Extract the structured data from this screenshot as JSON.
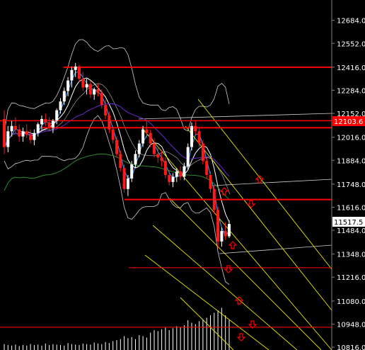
{
  "chart_data": {
    "type": "candlestick",
    "y_ticks": [
      12684.0,
      12552.0,
      12416.0,
      12284.0,
      12152.0,
      12016.0,
      11884.0,
      11748.0,
      11616.0,
      11484.0,
      11348.0,
      11216.0,
      11080.0,
      10948.0,
      10816.0
    ],
    "ylim": [
      10800,
      12800
    ],
    "current_price_label": "11517.5",
    "highlight_price_label": "12103.6",
    "colors": {
      "background": "#000000",
      "bull": "#ffffff",
      "bear": "#ff1a1a",
      "level": "#ff0000",
      "channel": "#e8e800",
      "ma_fast": "#3fa0ff",
      "ma_mid": "#ffffff",
      "ma_long": "#6a2ad0",
      "ma_green": "#2e8b2e",
      "band": "#cfcfcf",
      "volume": "#ffffff",
      "arrow": "#ff0000",
      "axis_text": "#ffffff"
    },
    "candles": [
      [
        12120,
        12170,
        11920,
        11960
      ],
      [
        11960,
        12080,
        11930,
        12050
      ],
      [
        12050,
        12110,
        12020,
        12080
      ],
      [
        12080,
        12130,
        12040,
        12060
      ],
      [
        12060,
        12090,
        11990,
        12020
      ],
      [
        12020,
        12070,
        11990,
        12050
      ],
      [
        12050,
        12090,
        12010,
        12030
      ],
      [
        12030,
        12060,
        11980,
        12000
      ],
      [
        12000,
        12060,
        11970,
        12040
      ],
      [
        12040,
        12100,
        12020,
        12090
      ],
      [
        12090,
        12140,
        12060,
        12120
      ],
      [
        12120,
        12150,
        12080,
        12100
      ],
      [
        12100,
        12130,
        12050,
        12070
      ],
      [
        12070,
        12120,
        12040,
        12110
      ],
      [
        12110,
        12180,
        12090,
        12170
      ],
      [
        12170,
        12240,
        12150,
        12220
      ],
      [
        12220,
        12300,
        12200,
        12280
      ],
      [
        12280,
        12360,
        12250,
        12340
      ],
      [
        12340,
        12420,
        12300,
        12400
      ],
      [
        12400,
        12440,
        12360,
        12420
      ],
      [
        12420,
        12430,
        12330,
        12350
      ],
      [
        12350,
        12390,
        12280,
        12300
      ],
      [
        12300,
        12350,
        12260,
        12320
      ],
      [
        12320,
        12340,
        12240,
        12260
      ],
      [
        12260,
        12300,
        12230,
        12290
      ],
      [
        12290,
        12320,
        12250,
        12270
      ],
      [
        12270,
        12290,
        12180,
        12200
      ],
      [
        12200,
        12230,
        12120,
        12140
      ],
      [
        12140,
        12160,
        12040,
        12060
      ],
      [
        12060,
        12080,
        11980,
        12000
      ],
      [
        12000,
        12020,
        11900,
        11920
      ],
      [
        11920,
        11940,
        11820,
        11840
      ],
      [
        11840,
        11860,
        11700,
        11720
      ],
      [
        11720,
        11800,
        11680,
        11780
      ],
      [
        11780,
        11880,
        11760,
        11860
      ],
      [
        11860,
        11940,
        11840,
        11920
      ],
      [
        11920,
        12000,
        11900,
        11980
      ],
      [
        11980,
        12080,
        11960,
        12060
      ],
      [
        12060,
        12110,
        12010,
        12040
      ],
      [
        12040,
        12060,
        11960,
        11980
      ],
      [
        11980,
        12010,
        11900,
        11920
      ],
      [
        11920,
        11960,
        11870,
        11900
      ],
      [
        11900,
        11940,
        11850,
        11880
      ],
      [
        11880,
        11900,
        11780,
        11800
      ],
      [
        11800,
        11830,
        11740,
        11760
      ],
      [
        11760,
        11810,
        11730,
        11790
      ],
      [
        11790,
        11840,
        11760,
        11820
      ],
      [
        11820,
        11850,
        11770,
        11790
      ],
      [
        11790,
        11870,
        11770,
        11850
      ],
      [
        11850,
        11980,
        11830,
        11960
      ],
      [
        11960,
        12100,
        11940,
        12080
      ],
      [
        12080,
        12110,
        12030,
        12050
      ],
      [
        12050,
        12070,
        11960,
        11980
      ],
      [
        11980,
        12000,
        11860,
        11880
      ],
      [
        11880,
        11900,
        11780,
        11800
      ],
      [
        11800,
        11820,
        11700,
        11720
      ],
      [
        11720,
        11740,
        11580,
        11600
      ],
      [
        11600,
        11620,
        11380,
        11420
      ],
      [
        11420,
        11500,
        11390,
        11480
      ],
      [
        11480,
        11530,
        11430,
        11450
      ],
      [
        11450,
        11540,
        11440,
        11520
      ]
    ],
    "volume_max": 100,
    "volumes": [
      12,
      10,
      9,
      11,
      8,
      10,
      9,
      12,
      10,
      11,
      9,
      13,
      10,
      12,
      11,
      10,
      9,
      14,
      12,
      11,
      10,
      13,
      12,
      11,
      15,
      13,
      12,
      16,
      14,
      18,
      20,
      22,
      28,
      24,
      26,
      22,
      30,
      28,
      25,
      35,
      40,
      38,
      42,
      45,
      40,
      44,
      48,
      46,
      50,
      60,
      55,
      52,
      58,
      62,
      65,
      70,
      75,
      80,
      85,
      70,
      60
    ],
    "levels": [
      {
        "price": 12416,
        "x0": 90,
        "x1": 469,
        "width": 2
      },
      {
        "price": 12110,
        "x0": 0,
        "x1": 469,
        "width": 1.5
      },
      {
        "price": 12070,
        "x0": 60,
        "x1": 469,
        "width": 2
      },
      {
        "price": 11660,
        "x0": 176,
        "x1": 469,
        "width": 2
      },
      {
        "price": 11270,
        "x0": 182,
        "x1": 469,
        "width": 1
      },
      {
        "price": 10930,
        "x0": 0,
        "x1": 469,
        "width": 1
      }
    ],
    "up_arrows": [
      [
        367,
        253
      ],
      [
        317,
        270
      ],
      [
        329,
        346
      ],
      [
        338,
        424
      ]
    ],
    "down_arrows": [
      [
        355,
        288
      ],
      [
        323,
        380
      ],
      [
        357,
        458
      ],
      [
        341,
        476
      ]
    ]
  }
}
